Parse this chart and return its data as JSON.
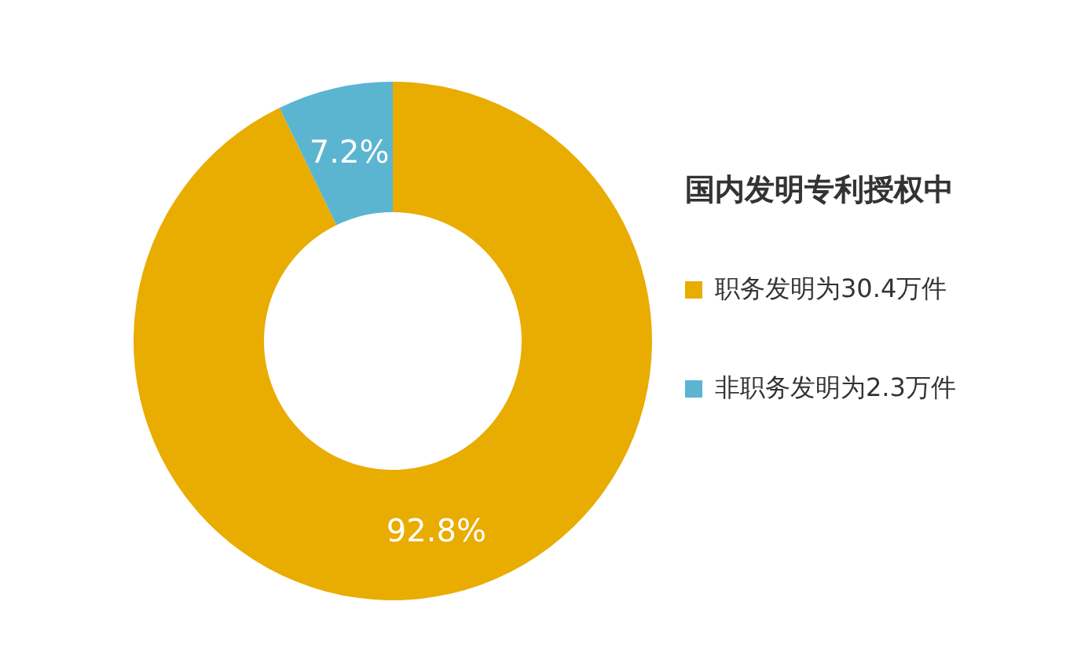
{
  "chart_data": {
    "type": "donut",
    "legend_title": "国内发明专利授权中",
    "legend": "right",
    "categories": [
      "职务发明为30.4万件",
      "非职务发明为2.3万件"
    ],
    "values": [
      92.8,
      7.2
    ],
    "value_labels": [
      "92.8%",
      "7.2%"
    ],
    "colors": [
      "#e9ac00",
      "#5bb5d0"
    ]
  }
}
